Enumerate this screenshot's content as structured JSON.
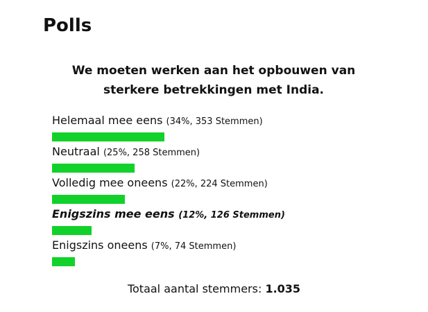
{
  "header": {
    "title": "Polls"
  },
  "poll": {
    "question": "We moeten werken aan het opbouwen van sterkere betrekkingen met India.",
    "bar_color": "#12d12a",
    "options": [
      {
        "label": "Helemaal mee eens",
        "value_label": "(34%, 353 Stemmen)",
        "percent": 34,
        "votes": 353
      },
      {
        "label": "Neutraal",
        "value_label": "(25%, 258 Stemmen)",
        "percent": 25,
        "votes": 258
      },
      {
        "label": "Volledig mee oneens",
        "value_label": "(22%, 224 Stemmen)",
        "percent": 22,
        "votes": 224
      },
      {
        "label": "Enigszins mee eens",
        "value_label": "(12%, 126 Stemmen)",
        "percent": 12,
        "votes": 126,
        "selected": true
      },
      {
        "label": "Enigszins oneens",
        "value_label": "(7%, 74 Stemmen)",
        "percent": 7,
        "votes": 74
      }
    ],
    "total_label": "Totaal aantal stemmers:",
    "total": "1.035"
  }
}
